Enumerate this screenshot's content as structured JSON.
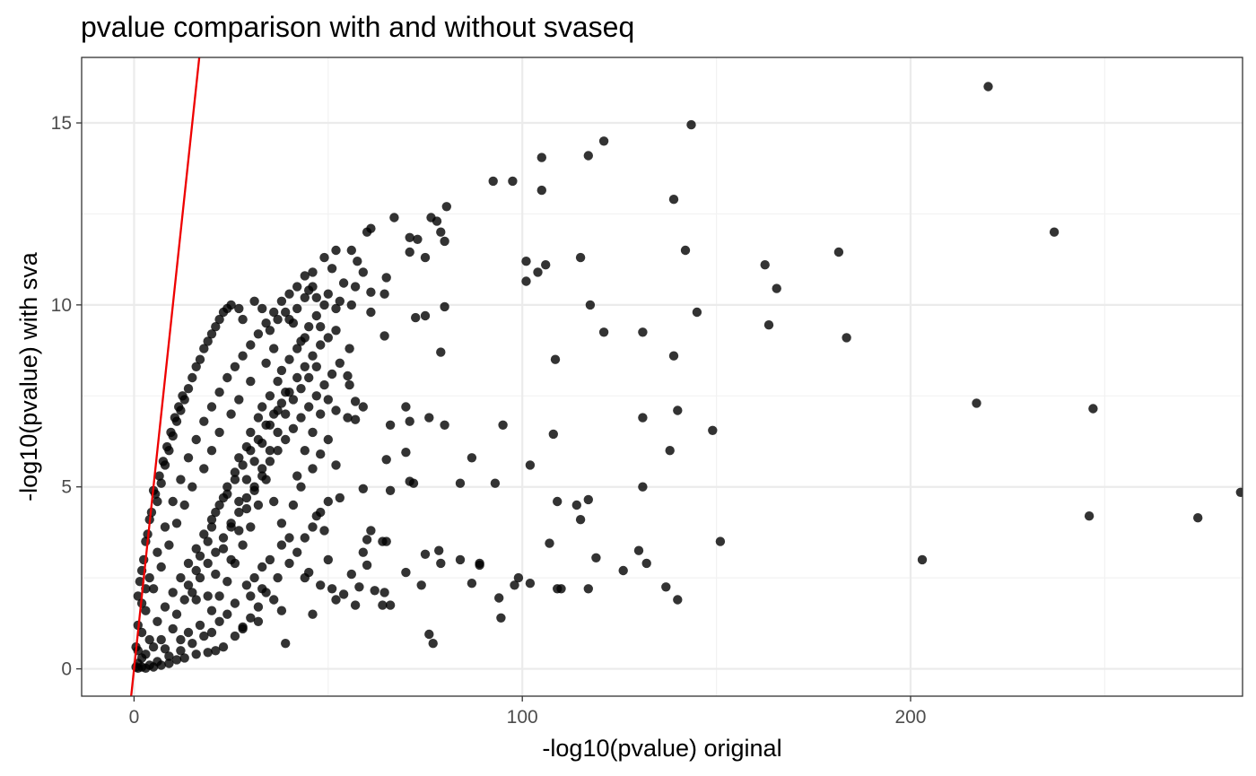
{
  "chart_data": {
    "type": "scatter",
    "title": "pvalue comparison with and without svaseq",
    "xlabel": "-log10(pvalue) original",
    "ylabel": "-log10(pvalue) with sva",
    "xlim": [
      -13.5,
      285.5
    ],
    "ylim": [
      -0.75,
      16.8
    ],
    "x_ticks": [
      0,
      100,
      200
    ],
    "x_tick_labels": [
      "0",
      "100",
      "200"
    ],
    "x_minor_ticks": [
      50,
      150,
      250
    ],
    "y_ticks": [
      0,
      5,
      10,
      15
    ],
    "y_tick_labels": [
      "0",
      "5",
      "10",
      "15"
    ],
    "y_minor_ticks": [
      2.5,
      7.5,
      12.5
    ],
    "grid": true,
    "legend": "none",
    "point_color": "#000000",
    "point_opacity": 0.8,
    "line_color": "#ee0000",
    "reference_line": {
      "intercept": 0,
      "slope": 1
    },
    "points": [
      [
        220,
        16.0
      ],
      [
        143.5,
        14.95
      ],
      [
        121,
        14.5
      ],
      [
        117,
        14.1
      ],
      [
        105,
        14.05
      ],
      [
        92.5,
        13.4
      ],
      [
        97.5,
        13.4
      ],
      [
        105,
        13.15
      ],
      [
        139,
        12.9
      ],
      [
        80.5,
        12.7
      ],
      [
        67,
        12.4
      ],
      [
        76.5,
        12.4
      ],
      [
        78,
        12.3
      ],
      [
        61,
        12.1
      ],
      [
        60,
        12.0
      ],
      [
        79,
        12.0
      ],
      [
        71,
        11.85
      ],
      [
        73,
        11.8
      ],
      [
        80,
        11.75
      ],
      [
        237,
        12.0
      ],
      [
        142,
        11.5
      ],
      [
        181.5,
        11.45
      ],
      [
        52,
        11.5
      ],
      [
        56,
        11.5
      ],
      [
        71,
        11.45
      ],
      [
        75,
        11.3
      ],
      [
        57.5,
        11.2
      ],
      [
        101,
        11.2
      ],
      [
        115,
        11.3
      ],
      [
        104,
        10.9
      ],
      [
        106,
        11.1
      ],
      [
        162.5,
        11.1
      ],
      [
        59,
        10.9
      ],
      [
        65,
        10.75
      ],
      [
        101,
        10.65
      ],
      [
        165.5,
        10.45
      ],
      [
        57,
        10.5
      ],
      [
        54,
        10.6
      ],
      [
        64.5,
        10.3
      ],
      [
        61,
        10.35
      ],
      [
        56,
        10.0
      ],
      [
        52,
        9.9
      ],
      [
        117.5,
        10.0
      ],
      [
        145,
        9.8
      ],
      [
        61,
        9.8
      ],
      [
        75,
        9.7
      ],
      [
        80,
        9.95
      ],
      [
        72.5,
        9.65
      ],
      [
        163.5,
        9.45
      ],
      [
        131,
        9.25
      ],
      [
        121,
        9.25
      ],
      [
        183.5,
        9.1
      ],
      [
        64.5,
        9.15
      ],
      [
        55.5,
        8.8
      ],
      [
        79,
        8.7
      ],
      [
        139,
        8.6
      ],
      [
        108.5,
        8.5
      ],
      [
        55,
        8.05
      ],
      [
        55.5,
        7.8
      ],
      [
        57,
        7.35
      ],
      [
        70,
        7.2
      ],
      [
        59,
        7.2
      ],
      [
        52,
        7.1
      ],
      [
        55,
        6.9
      ],
      [
        57,
        6.85
      ],
      [
        217,
        7.3
      ],
      [
        247,
        7.15
      ],
      [
        140,
        7.1
      ],
      [
        76,
        6.9
      ],
      [
        71,
        6.8
      ],
      [
        80,
        6.7
      ],
      [
        95,
        6.7
      ],
      [
        66,
        6.7
      ],
      [
        131,
        6.9
      ],
      [
        149,
        6.55
      ],
      [
        108,
        6.45
      ],
      [
        138,
        6.0
      ],
      [
        70,
        5.95
      ],
      [
        65,
        5.75
      ],
      [
        87,
        5.8
      ],
      [
        102,
        5.6
      ],
      [
        71,
        5.15
      ],
      [
        72,
        5.1
      ],
      [
        84,
        5.1
      ],
      [
        93,
        5.1
      ],
      [
        131,
        5.0
      ],
      [
        66,
        4.9
      ],
      [
        59,
        4.95
      ],
      [
        53,
        4.7
      ],
      [
        109,
        4.6
      ],
      [
        117,
        4.65
      ],
      [
        114,
        4.5
      ],
      [
        115,
        4.1
      ],
      [
        246,
        4.2
      ],
      [
        274,
        4.15
      ],
      [
        285,
        4.85
      ],
      [
        61,
        3.8
      ],
      [
        60,
        3.55
      ],
      [
        64,
        3.5
      ],
      [
        65,
        3.5
      ],
      [
        59,
        3.2
      ],
      [
        107,
        3.45
      ],
      [
        151,
        3.5
      ],
      [
        75,
        3.15
      ],
      [
        78.5,
        3.25
      ],
      [
        84,
        3.0
      ],
      [
        89,
        2.9
      ],
      [
        79,
        2.9
      ],
      [
        60,
        2.85
      ],
      [
        50,
        3.0
      ],
      [
        56,
        2.6
      ],
      [
        45,
        2.65
      ],
      [
        70,
        2.65
      ],
      [
        119,
        3.05
      ],
      [
        126,
        2.7
      ],
      [
        130,
        3.25
      ],
      [
        132,
        2.9
      ],
      [
        89,
        2.85
      ],
      [
        99,
        2.5
      ],
      [
        102,
        2.35
      ],
      [
        98,
        2.3
      ],
      [
        87,
        2.35
      ],
      [
        74,
        2.3
      ],
      [
        48,
        2.3
      ],
      [
        51,
        2.2
      ],
      [
        203,
        3.0
      ],
      [
        137,
        2.25
      ],
      [
        58,
        2.25
      ],
      [
        62,
        2.15
      ],
      [
        64.5,
        2.1
      ],
      [
        54,
        2.05
      ],
      [
        94,
        1.95
      ],
      [
        109,
        2.2
      ],
      [
        110,
        2.2
      ],
      [
        117,
        2.2
      ],
      [
        140,
        1.9
      ],
      [
        52,
        1.9
      ],
      [
        64,
        1.75
      ],
      [
        66,
        1.75
      ],
      [
        57,
        1.75
      ],
      [
        46,
        1.5
      ],
      [
        94.5,
        1.4
      ],
      [
        76,
        0.95
      ],
      [
        77,
        0.7
      ],
      [
        39,
        0.7
      ],
      [
        32,
        1.3
      ],
      [
        28,
        1.15
      ],
      [
        20,
        1.0
      ],
      [
        30,
        2.0
      ],
      [
        33,
        2.2
      ],
      [
        37,
        2.5
      ],
      [
        40,
        2.9
      ],
      [
        42,
        3.2
      ],
      [
        44,
        3.6
      ],
      [
        46,
        3.9
      ],
      [
        48,
        4.3
      ],
      [
        50,
        4.6
      ],
      [
        35,
        3.0
      ],
      [
        38,
        3.4
      ],
      [
        33,
        2.8
      ],
      [
        31,
        2.5
      ],
      [
        29,
        2.3
      ],
      [
        26,
        1.8
      ],
      [
        24,
        1.5
      ],
      [
        22,
        1.3
      ],
      [
        18,
        0.9
      ],
      [
        15,
        0.7
      ],
      [
        12,
        0.5
      ],
      [
        9,
        0.35
      ],
      [
        6,
        0.2
      ],
      [
        4,
        0.1
      ],
      [
        2,
        0.05
      ],
      [
        1,
        0.02
      ],
      [
        3,
        0.4
      ],
      [
        5,
        0.6
      ],
      [
        7,
        0.8
      ],
      [
        10,
        1.1
      ],
      [
        11,
        1.5
      ],
      [
        13,
        1.9
      ],
      [
        14,
        2.3
      ],
      [
        16,
        2.7
      ],
      [
        17,
        3.1
      ],
      [
        19,
        3.5
      ],
      [
        20,
        3.9
      ],
      [
        21,
        4.3
      ],
      [
        23,
        4.7
      ],
      [
        24,
        5.0
      ],
      [
        26,
        5.4
      ],
      [
        27,
        5.8
      ],
      [
        29,
        6.1
      ],
      [
        30,
        6.5
      ],
      [
        32,
        6.9
      ],
      [
        33,
        7.2
      ],
      [
        35,
        7.5
      ],
      [
        37,
        7.9
      ],
      [
        38,
        8.2
      ],
      [
        40,
        8.5
      ],
      [
        42,
        8.8
      ],
      [
        44,
        9.1
      ],
      [
        45,
        9.4
      ],
      [
        47,
        9.7
      ],
      [
        49,
        10.0
      ],
      [
        36,
        8.8
      ],
      [
        34,
        8.4
      ],
      [
        30,
        7.9
      ],
      [
        27,
        7.4
      ],
      [
        25,
        7.0
      ],
      [
        22,
        6.5
      ],
      [
        20,
        6.0
      ],
      [
        18,
        5.5
      ],
      [
        15,
        5.0
      ],
      [
        13,
        4.5
      ],
      [
        11,
        4.0
      ],
      [
        9,
        3.4
      ],
      [
        7,
        2.8
      ],
      [
        5,
        2.2
      ],
      [
        3,
        1.6
      ],
      [
        2,
        1.0
      ],
      [
        1,
        0.5
      ],
      [
        4,
        2.5
      ],
      [
        6,
        3.2
      ],
      [
        8,
        3.9
      ],
      [
        10,
        4.6
      ],
      [
        12,
        5.2
      ],
      [
        14,
        5.8
      ],
      [
        16,
        6.3
      ],
      [
        18,
        6.8
      ],
      [
        20,
        7.2
      ],
      [
        22,
        7.6
      ],
      [
        24,
        8.0
      ],
      [
        26,
        8.3
      ],
      [
        28,
        8.6
      ],
      [
        30,
        8.9
      ],
      [
        32,
        9.2
      ],
      [
        34,
        9.5
      ],
      [
        36,
        9.8
      ],
      [
        38,
        10.1
      ],
      [
        40,
        10.3
      ],
      [
        42,
        10.5
      ],
      [
        44,
        10.8
      ],
      [
        46,
        10.9
      ],
      [
        25,
        3.0
      ],
      [
        27,
        3.8
      ],
      [
        29,
        4.4
      ],
      [
        31,
        4.9
      ],
      [
        33,
        5.5
      ],
      [
        35,
        6.0
      ],
      [
        37,
        6.5
      ],
      [
        39,
        7.0
      ],
      [
        41,
        7.4
      ],
      [
        43,
        7.7
      ],
      [
        45,
        8.0
      ],
      [
        47,
        8.3
      ],
      [
        19,
        2.0
      ],
      [
        21,
        2.6
      ],
      [
        23,
        3.3
      ],
      [
        25,
        4.0
      ],
      [
        27,
        4.6
      ],
      [
        29,
        5.2
      ],
      [
        31,
        5.7
      ],
      [
        33,
        6.2
      ],
      [
        35,
        6.7
      ],
      [
        37,
        7.1
      ],
      [
        39,
        7.6
      ],
      [
        34,
        5.2
      ],
      [
        36,
        4.6
      ],
      [
        38,
        4.0
      ],
      [
        40,
        3.6
      ],
      [
        42,
        5.3
      ],
      [
        44,
        6.0
      ],
      [
        46,
        6.5
      ],
      [
        48,
        7.0
      ],
      [
        50,
        7.4
      ],
      [
        43,
        5.0
      ],
      [
        41,
        4.5
      ],
      [
        28,
        3.4
      ],
      [
        30,
        3.9
      ],
      [
        32,
        4.5
      ],
      [
        26,
        2.9
      ],
      [
        24,
        2.4
      ],
      [
        22,
        2.0
      ],
      [
        20,
        1.6
      ],
      [
        17,
        1.2
      ],
      [
        14,
        1.0
      ],
      [
        12,
        0.8
      ],
      [
        8,
        0.55
      ],
      [
        16,
        1.9
      ],
      [
        5,
        4.9
      ],
      [
        4,
        4.1
      ],
      [
        3,
        3.5
      ],
      [
        6,
        4.6
      ],
      [
        2,
        2.7
      ],
      [
        1,
        2.0
      ],
      [
        7,
        5.1
      ],
      [
        3,
        2.2
      ],
      [
        8,
        5.6
      ],
      [
        9,
        6.0
      ],
      [
        10,
        6.4
      ],
      [
        11,
        6.8
      ],
      [
        12,
        7.1
      ],
      [
        13,
        7.4
      ],
      [
        14,
        7.7
      ],
      [
        15,
        8.0
      ],
      [
        16,
        8.3
      ],
      [
        17,
        8.5
      ],
      [
        18,
        8.8
      ],
      [
        19,
        9.0
      ],
      [
        20,
        9.2
      ],
      [
        21,
        9.4
      ],
      [
        22,
        9.6
      ],
      [
        23,
        9.8
      ],
      [
        24,
        9.9
      ],
      [
        25,
        10.0
      ],
      [
        27,
        9.9
      ],
      [
        28,
        9.6
      ],
      [
        31,
        10.1
      ],
      [
        33,
        9.9
      ],
      [
        35,
        9.3
      ],
      [
        37,
        9.6
      ],
      [
        39,
        9.8
      ],
      [
        41,
        9.5
      ],
      [
        43,
        9.0
      ],
      [
        45,
        10.4
      ],
      [
        47,
        10.2
      ],
      [
        48,
        9.4
      ],
      [
        50,
        10.3
      ],
      [
        51,
        11.0
      ],
      [
        49,
        11.3
      ],
      [
        53,
        10.1
      ],
      [
        46,
        5.5
      ],
      [
        48,
        5.9
      ],
      [
        50,
        6.3
      ],
      [
        52,
        5.6
      ],
      [
        47,
        4.2
      ],
      [
        49,
        3.8
      ],
      [
        44,
        2.5
      ],
      [
        38,
        1.6
      ],
      [
        36,
        1.9
      ],
      [
        34,
        2.1
      ],
      [
        32,
        1.7
      ],
      [
        30,
        1.4
      ],
      [
        28,
        1.1
      ],
      [
        26,
        0.9
      ],
      [
        23,
        0.6
      ],
      [
        21,
        0.5
      ],
      [
        19,
        0.45
      ],
      [
        16,
        0.4
      ],
      [
        13,
        0.3
      ],
      [
        11,
        0.25
      ],
      [
        9,
        0.15
      ],
      [
        7,
        0.1
      ],
      [
        5,
        0.05
      ],
      [
        3,
        0.02
      ],
      [
        2,
        0.3
      ],
      [
        1,
        0.15
      ],
      [
        0.5,
        0.05
      ],
      [
        0.5,
        0.6
      ],
      [
        1,
        1.2
      ],
      [
        2,
        1.8
      ],
      [
        1.5,
        2.4
      ],
      [
        2.5,
        3.0
      ],
      [
        3.5,
        3.7
      ],
      [
        4.5,
        4.3
      ],
      [
        5.5,
        4.8
      ],
      [
        6.5,
        5.3
      ],
      [
        7.5,
        5.7
      ],
      [
        8.5,
        6.1
      ],
      [
        9.5,
        6.5
      ],
      [
        10.5,
        6.9
      ],
      [
        11.5,
        7.2
      ],
      [
        12.5,
        7.5
      ],
      [
        4,
        0.8
      ],
      [
        6,
        1.3
      ],
      [
        8,
        1.7
      ],
      [
        10,
        2.1
      ],
      [
        12,
        2.5
      ],
      [
        14,
        2.9
      ],
      [
        16,
        3.3
      ],
      [
        18,
        3.7
      ],
      [
        20,
        4.1
      ],
      [
        22,
        4.5
      ],
      [
        24,
        4.8
      ],
      [
        26,
        5.2
      ],
      [
        28,
        5.6
      ],
      [
        30,
        6.0
      ],
      [
        32,
        6.3
      ],
      [
        34,
        6.7
      ],
      [
        36,
        7.0
      ],
      [
        38,
        7.3
      ],
      [
        40,
        7.6
      ],
      [
        42,
        8.0
      ],
      [
        44,
        8.3
      ],
      [
        46,
        8.6
      ],
      [
        48,
        8.9
      ],
      [
        50,
        9.1
      ],
      [
        52,
        9.3
      ],
      [
        15,
        2.1
      ],
      [
        17,
        2.5
      ],
      [
        19,
        2.9
      ],
      [
        21,
        3.2
      ],
      [
        23,
        3.6
      ],
      [
        25,
        3.9
      ],
      [
        27,
        4.3
      ],
      [
        29,
        4.7
      ],
      [
        31,
        5.0
      ],
      [
        33,
        5.3
      ],
      [
        35,
        5.7
      ],
      [
        37,
        6.0
      ],
      [
        39,
        6.3
      ],
      [
        41,
        6.6
      ],
      [
        43,
        6.9
      ],
      [
        45,
        7.2
      ],
      [
        47,
        7.5
      ],
      [
        49,
        7.8
      ],
      [
        51,
        8.1
      ],
      [
        53,
        8.4
      ],
      [
        40,
        9.6
      ],
      [
        42,
        9.9
      ],
      [
        44,
        10.2
      ],
      [
        46,
        10.5
      ]
    ]
  }
}
